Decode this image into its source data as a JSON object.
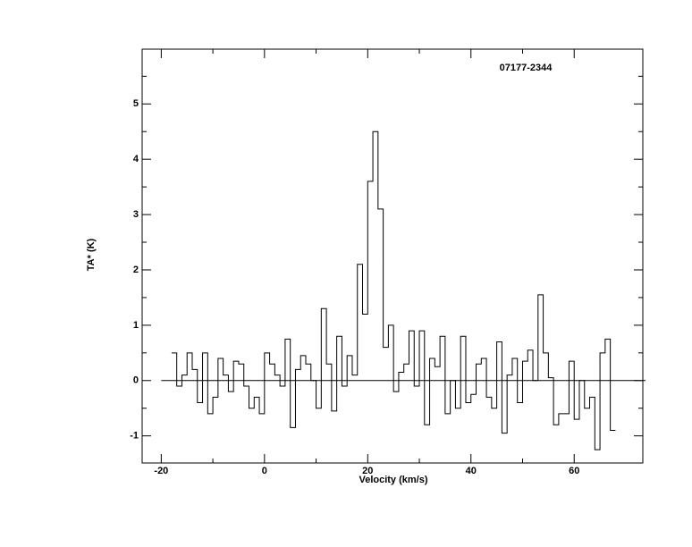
{
  "chart_data": {
    "type": "step",
    "title": "07177-2344",
    "xlabel": "Velocity (km/s)",
    "ylabel": "TA* (K)",
    "xlim": [
      -23.7,
      73.3
    ],
    "ylim": [
      -1.49,
      5.99
    ],
    "xticks": [
      -20,
      0,
      20,
      40,
      60
    ],
    "yticks": [
      -1,
      0,
      1,
      2,
      3,
      4,
      5
    ],
    "x": [
      -17.5,
      -16.5,
      -15.5,
      -14.5,
      -13.5,
      -12.5,
      -11.5,
      -10.5,
      -9.5,
      -8.5,
      -7.5,
      -6.5,
      -5.5,
      -4.5,
      -3.5,
      -2.5,
      -1.5,
      -0.5,
      0.5,
      1.5,
      2.5,
      3.5,
      4.5,
      5.5,
      6.5,
      7.5,
      8.5,
      9.5,
      10.5,
      11.5,
      12.5,
      13.5,
      14.5,
      15.5,
      16.5,
      17.5,
      18.5,
      19.5,
      20.5,
      21.5,
      22.5,
      23.5,
      24.5,
      25.5,
      26.5,
      27.5,
      28.5,
      29.5,
      30.5,
      31.5,
      32.5,
      33.5,
      34.5,
      35.5,
      36.5,
      37.5,
      38.5,
      39.5,
      40.5,
      41.5,
      42.5,
      43.5,
      44.5,
      45.5,
      46.5,
      47.5,
      48.5,
      49.5,
      50.5,
      51.5,
      52.5,
      53.5,
      54.5,
      55.5,
      56.5,
      57.5,
      58.5,
      59.5,
      60.5,
      61.5,
      62.5,
      63.5,
      64.5,
      65.5,
      66.5,
      67.5
    ],
    "series": [
      {
        "color": "#000000",
        "values": [
          0.5,
          -0.1,
          0.1,
          0.5,
          0.2,
          -0.4,
          0.5,
          -0.6,
          -0.3,
          0.4,
          0.1,
          -0.2,
          0.35,
          0.3,
          -0.1,
          -0.5,
          -0.3,
          -0.6,
          0.5,
          0.3,
          0.1,
          -0.1,
          0.75,
          -0.85,
          0.2,
          0.45,
          0.3,
          0.0,
          -0.5,
          1.3,
          0.3,
          -0.55,
          0.8,
          -0.1,
          0.45,
          0.1,
          2.1,
          1.2,
          3.6,
          4.5,
          3.1,
          0.6,
          1.0,
          -0.2,
          0.15,
          0.3,
          0.9,
          -0.1,
          0.9,
          -0.8,
          0.4,
          0.25,
          0.8,
          -0.6,
          0.0,
          -0.5,
          0.8,
          -0.4,
          -0.25,
          0.3,
          0.4,
          -0.3,
          -0.5,
          0.7,
          -0.95,
          0.1,
          0.4,
          -0.4,
          0.35,
          0.55,
          0.0,
          1.55,
          0.5,
          0.05,
          -0.8,
          -0.6,
          -0.6,
          0.35,
          -0.7,
          0.0,
          -0.5,
          -0.3,
          -1.25,
          0.5,
          0.75,
          -0.9
        ]
      }
    ]
  }
}
